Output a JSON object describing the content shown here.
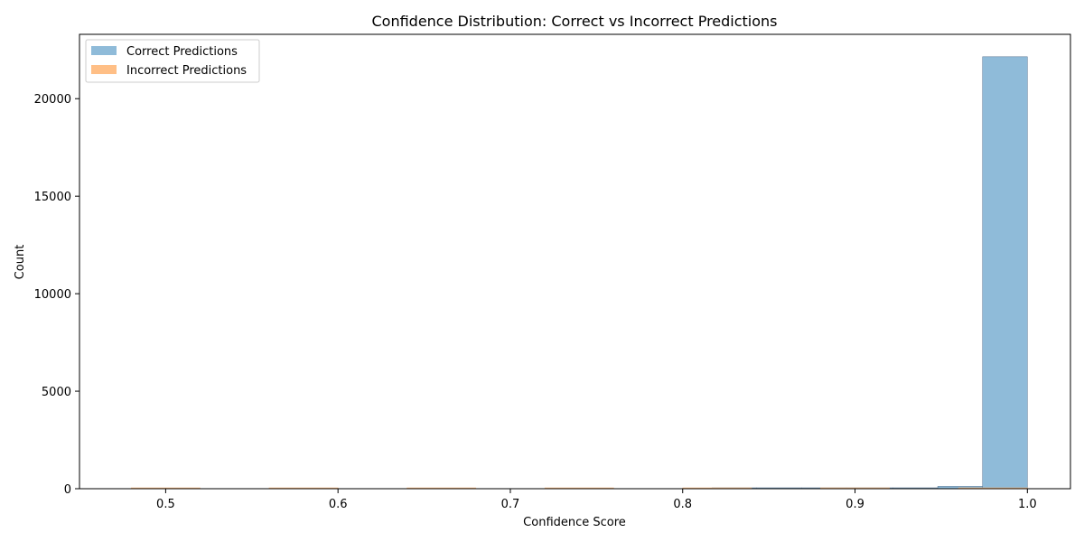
{
  "chart_data": {
    "type": "bar",
    "title": "Confidence Distribution: Correct vs Incorrect Predictions",
    "xlabel": "Confidence Score",
    "ylabel": "Count",
    "xlim": [
      0.45,
      1.025
    ],
    "ylim": [
      0,
      23300
    ],
    "xticks": [
      "0.5",
      "0.6",
      "0.7",
      "0.8",
      "0.9",
      "1.0"
    ],
    "xtick_values": [
      0.5,
      0.6,
      0.7,
      0.8,
      0.9,
      1.0
    ],
    "yticks": [
      "0",
      "5000",
      "10000",
      "15000",
      "20000"
    ],
    "ytick_values": [
      0,
      5000,
      10000,
      15000,
      20000
    ],
    "legend_position": "upper-left",
    "series": [
      {
        "name": "Correct Predictions",
        "color": "#8fbbd9",
        "edge_color": "#4f6f8f",
        "bins": [
          {
            "x0": 0.817,
            "x1": 0.843,
            "count": 15
          },
          {
            "x0": 0.843,
            "x1": 0.869,
            "count": 18
          },
          {
            "x0": 0.869,
            "x1": 0.895,
            "count": 22
          },
          {
            "x0": 0.895,
            "x1": 0.922,
            "count": 28
          },
          {
            "x0": 0.922,
            "x1": 0.948,
            "count": 40
          },
          {
            "x0": 0.948,
            "x1": 0.974,
            "count": 120
          },
          {
            "x0": 0.974,
            "x1": 1.0,
            "count": 22150
          }
        ]
      },
      {
        "name": "Incorrect Predictions",
        "color": "#ffbf86",
        "edge_color": "#ffbf86",
        "bins": [
          {
            "x0": 0.48,
            "x1": 0.52,
            "count": 2
          },
          {
            "x0": 0.56,
            "x1": 0.6,
            "count": 3
          },
          {
            "x0": 0.64,
            "x1": 0.68,
            "count": 4
          },
          {
            "x0": 0.72,
            "x1": 0.76,
            "count": 5
          },
          {
            "x0": 0.8,
            "x1": 0.84,
            "count": 7
          },
          {
            "x0": 0.88,
            "x1": 0.92,
            "count": 9
          },
          {
            "x0": 0.96,
            "x1": 1.0,
            "count": 14
          }
        ]
      }
    ]
  }
}
